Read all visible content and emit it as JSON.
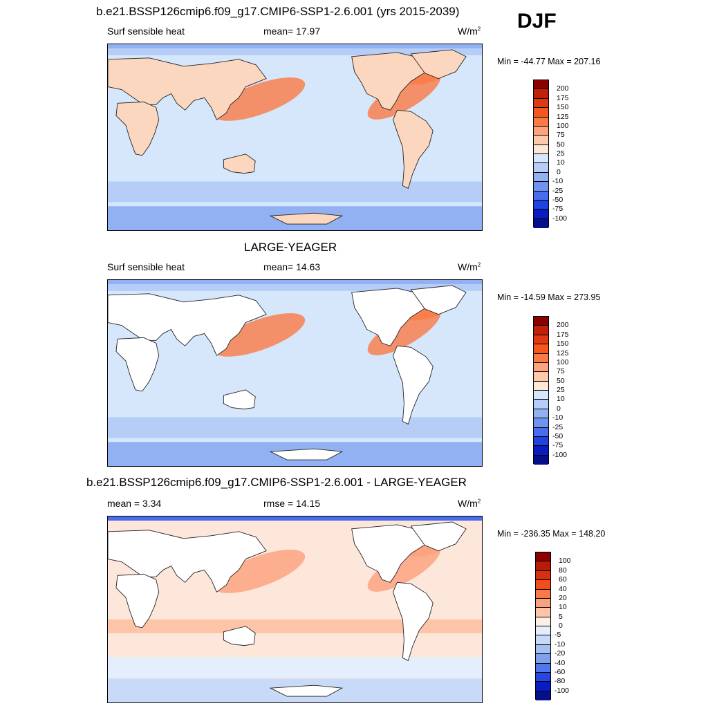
{
  "season": "DJF",
  "panels": [
    {
      "title": "b.e21.BSSP126cmip6.f09_g17.CMIP6-SSP1-2.6.001 (yrs 2015-2039)",
      "left_label": "Surf sensible heat",
      "center_label": "mean=  17.97",
      "units": "W/m",
      "units_sup": "2",
      "minmax": "Min = -44.77 Max = 207.16",
      "levels": [
        "200",
        "175",
        "150",
        "125",
        "100",
        "75",
        "50",
        "25",
        "10",
        "0",
        "-10",
        "-25",
        "-50",
        "-75",
        "-100"
      ],
      "colors": [
        "#8b0000",
        "#c1200a",
        "#e03810",
        "#f5581d",
        "#fa7a45",
        "#fca27e",
        "#fdc9aa",
        "#fde8d8",
        "#d6e7fb",
        "#b5cdf7",
        "#92b1f2",
        "#6f93ee",
        "#4a6ded",
        "#1f43e0",
        "#0a1bc0",
        "#050f8a"
      ]
    },
    {
      "title": "LARGE-YEAGER",
      "left_label": "Surf sensible heat",
      "center_label": "mean=  14.63",
      "units": "W/m",
      "units_sup": "2",
      "minmax": "Min = -14.59 Max = 273.95",
      "levels": [
        "200",
        "175",
        "150",
        "125",
        "100",
        "75",
        "50",
        "25",
        "10",
        "0",
        "-10",
        "-25",
        "-50",
        "-75",
        "-100"
      ],
      "colors": [
        "#8b0000",
        "#c1200a",
        "#e03810",
        "#f5581d",
        "#fa7a45",
        "#fca27e",
        "#fdc9aa",
        "#fde8d8",
        "#d6e7fb",
        "#b5cdf7",
        "#92b1f2",
        "#6f93ee",
        "#4a6ded",
        "#1f43e0",
        "#0a1bc0",
        "#050f8a"
      ]
    },
    {
      "title": "b.e21.BSSP126cmip6.f09_g17.CMIP6-SSP1-2.6.001 - LARGE-YEAGER",
      "left_label": "mean =   3.34",
      "center_label": "rmse =  14.15",
      "units": "W/m",
      "units_sup": "2",
      "minmax": "Min = -236.35 Max = 148.20",
      "levels": [
        "100",
        "80",
        "60",
        "40",
        "20",
        "10",
        "5",
        "0",
        "-5",
        "-10",
        "-20",
        "-40",
        "-60",
        "-80",
        "-100"
      ],
      "colors": [
        "#8b0000",
        "#b81c08",
        "#d8300e",
        "#f04e1a",
        "#f77a48",
        "#fba07c",
        "#fdc4a8",
        "#feeee4",
        "#e4eefc",
        "#c8daf8",
        "#a4c1f4",
        "#7ea0ef",
        "#5076ec",
        "#2448e0",
        "#0a1cc0",
        "#050f8a"
      ]
    }
  ]
}
